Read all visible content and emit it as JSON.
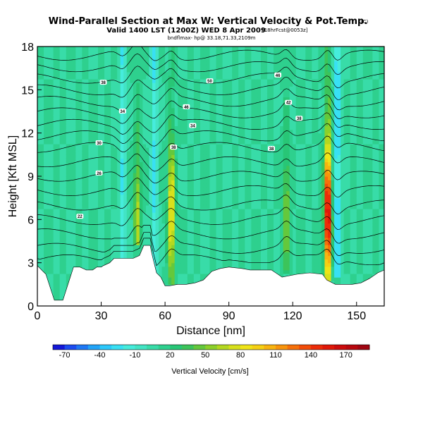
{
  "header": {
    "title": "Wind-Parallel Section at Max W: Vertical Velocity & Pot.Temp.",
    "copyright": "(C)",
    "valid_line": "Valid 1400 LST (1200Z) WED 8 Apr 2009",
    "forecast_tag": "[18hrFcst@0053z]",
    "location_line": "bndflmax- hp@ 33.18,71.33,2109m"
  },
  "chart_data": {
    "type": "heatmap",
    "xlabel": "Distance [nm]",
    "ylabel": "Height [Kft MSL]",
    "xlim": [
      0,
      163
    ],
    "ylim": [
      0,
      18
    ],
    "xticks": [
      "0",
      "30",
      "60",
      "90",
      "120",
      "150"
    ],
    "yticks": [
      "0",
      "3",
      "6",
      "9",
      "12",
      "15",
      "18"
    ],
    "colorbar": {
      "label": "Vertical Velocity [cm/s]",
      "ticks": [
        "-70",
        "-40",
        "-10",
        "20",
        "50",
        "80",
        "110",
        "140",
        "170"
      ],
      "levels": [
        -80,
        -70,
        -60,
        -50,
        -40,
        -30,
        -20,
        -10,
        0,
        10,
        20,
        30,
        40,
        50,
        60,
        70,
        80,
        90,
        100,
        110,
        120,
        130,
        140,
        150,
        160,
        170,
        180,
        190
      ],
      "colors": [
        "#1418d8",
        "#1c4cf0",
        "#1e78f5",
        "#22a4f8",
        "#2cc8fb",
        "#38e0f4",
        "#46ecdc",
        "#42e4c4",
        "#38dca8",
        "#2ed08e",
        "#28c676",
        "#3cc45a",
        "#64c83c",
        "#8cd02a",
        "#b4d820",
        "#d8e01c",
        "#f0e418",
        "#f6d014",
        "#f8b410",
        "#f8940c",
        "#f6700a",
        "#f24c08",
        "#ec2c08",
        "#e01808",
        "#cc0c0c",
        "#b8080e",
        "#a00612"
      ]
    },
    "updrafts": [
      {
        "x": 47,
        "z_min": 4.2,
        "z_max": 18,
        "peak": 55
      },
      {
        "x": 63,
        "z_min": 1.5,
        "z_max": 18,
        "peak": 85
      },
      {
        "x": 117,
        "z_min": 2.3,
        "z_max": 18,
        "peak": 45
      },
      {
        "x": 136.5,
        "z_min": 1.8,
        "z_max": 18,
        "peak": 175
      }
    ],
    "downdrafts": [
      {
        "x": 40,
        "z_min": 3.3,
        "z_max": 18,
        "peak": -30
      },
      {
        "x": 55,
        "z_min": 2,
        "z_max": 18,
        "peak": -35
      },
      {
        "x": 141,
        "z_min": 2,
        "z_max": 18,
        "peak": -45
      }
    ],
    "terrain": {
      "x": [
        0,
        4,
        8,
        10,
        12,
        17,
        20,
        23,
        26,
        28,
        30,
        31,
        34,
        36,
        40,
        45,
        48,
        50,
        53,
        54,
        56,
        58,
        60,
        62,
        66,
        70,
        74,
        78,
        82,
        86,
        90,
        96,
        100,
        110,
        115,
        122,
        128,
        134,
        136,
        140,
        144,
        148,
        152,
        156,
        160,
        163
      ],
      "z": [
        2.8,
        2.2,
        0.4,
        0.4,
        0.4,
        2.7,
        2.7,
        2.5,
        2.5,
        2.7,
        2.7,
        2.8,
        3.0,
        3.3,
        3.3,
        3.3,
        3.5,
        4.2,
        4.2,
        3.5,
        2.3,
        2.0,
        1.4,
        1.4,
        1.5,
        1.5,
        1.6,
        1.8,
        2.4,
        2.6,
        2.7,
        2.6,
        2.5,
        2.5,
        2.0,
        2.2,
        2.3,
        2.2,
        1.8,
        1.5,
        1.5,
        1.5,
        1.6,
        1.9,
        2.3,
        2.5
      ]
    },
    "theta_contours": {
      "base_heights": [
        3.2,
        4.0,
        5.0,
        6.0,
        7.0,
        8.0,
        9.0,
        10.0,
        11.0,
        11.8,
        12.6,
        13.4,
        14.2,
        15.0,
        15.8,
        16.6,
        17.4
      ],
      "labels": [
        {
          "text": "22",
          "x": 20,
          "z": 6.2
        },
        {
          "text": "26",
          "x": 29,
          "z": 9.2
        },
        {
          "text": "30",
          "x": 29,
          "z": 11.3
        },
        {
          "text": "34",
          "x": 40,
          "z": 13.5
        },
        {
          "text": "38",
          "x": 31,
          "z": 15.5
        },
        {
          "text": "38",
          "x": 64,
          "z": 11.0
        },
        {
          "text": "34",
          "x": 73,
          "z": 12.5
        },
        {
          "text": "46",
          "x": 70,
          "z": 13.8
        },
        {
          "text": "50",
          "x": 81,
          "z": 15.6
        },
        {
          "text": "38",
          "x": 110,
          "z": 10.9
        },
        {
          "text": "38",
          "x": 123,
          "z": 13.0
        },
        {
          "text": "42",
          "x": 118,
          "z": 14.1
        },
        {
          "text": "46",
          "x": 113,
          "z": 16.0
        }
      ]
    }
  }
}
